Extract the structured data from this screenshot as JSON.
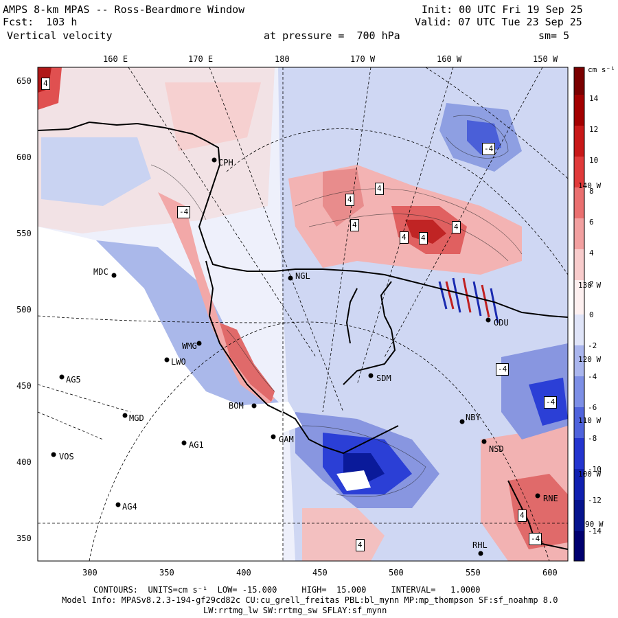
{
  "header": {
    "title": "AMPS 8-km MPAS -- Ross-Beardmore Window",
    "init": "Init: 00 UTC Fri 19 Sep 25",
    "fcst": "Fcst:  103 h",
    "valid": "Valid: 07 UTC Tue 23 Sep 25",
    "field": "Vertical velocity",
    "pressure": "at pressure =  700 hPa",
    "smooth": "sm= 5"
  },
  "axes": {
    "top_lon_labels": [
      "160 E",
      "170 E",
      "180",
      "170 W",
      "160 W",
      "150 W"
    ],
    "left_y_labels": [
      "650",
      "600",
      "550",
      "500",
      "450",
      "400",
      "350"
    ],
    "bottom_x_labels": [
      "300",
      "350",
      "400",
      "450",
      "500",
      "550",
      "600"
    ]
  },
  "colorbar": {
    "units": "cm s⁻¹",
    "tick_labels": [
      "14",
      "12",
      "10",
      "8",
      "6",
      "4",
      "2",
      "0",
      "-2",
      "-4",
      "-6",
      "-8",
      "-10",
      "-12",
      "-14"
    ],
    "colors": {
      "strong_up": "#7a0000",
      "mod_up": "#d93030",
      "weak_up": "#f6c8c8",
      "neutral": "#ffffff",
      "weak_down": "#c9d3f2",
      "mod_down": "#2b3fd6",
      "strong_down": "#000080"
    }
  },
  "right_edge_labels": [
    "140 W",
    "130 W",
    "120 W",
    "110 W",
    "100 W",
    "90 W"
  ],
  "stations": [
    {
      "name": "MDC"
    },
    {
      "name": "NGL"
    },
    {
      "name": "CPH"
    },
    {
      "name": "AG5"
    },
    {
      "name": "MGD"
    },
    {
      "name": "VOS"
    },
    {
      "name": "AG1"
    },
    {
      "name": "AG4"
    },
    {
      "name": "SDM"
    },
    {
      "name": "NBY"
    },
    {
      "name": "NSD"
    },
    {
      "name": "RNE"
    },
    {
      "name": "ODU"
    },
    {
      "name": "LWO"
    },
    {
      "name": "WMG"
    },
    {
      "name": "BOM"
    },
    {
      "name": "GAM"
    },
    {
      "name": "RHL"
    }
  ],
  "extrema_labels": [
    "4",
    "-4",
    "4",
    "4",
    "4",
    "4",
    "4",
    "-4",
    "-4",
    "-4",
    "4",
    "4",
    "-4",
    "4"
  ],
  "footer": {
    "contours": "CONTOURS:  UNITS=cm s⁻¹  LOW= -15.000     HIGH=  15.000     INTERVAL=   1.0000",
    "model_info": "Model Info: MPASv8.2.3-194-gf29cd82c CU:cu_grell_freitas PBL:bl_mynn MP:mp_thompson SF:sf_noahmp 8.0",
    "radiation": "LW:rrtmg_lw SW:rrtmg_sw SFLAY:sf_mynn"
  }
}
